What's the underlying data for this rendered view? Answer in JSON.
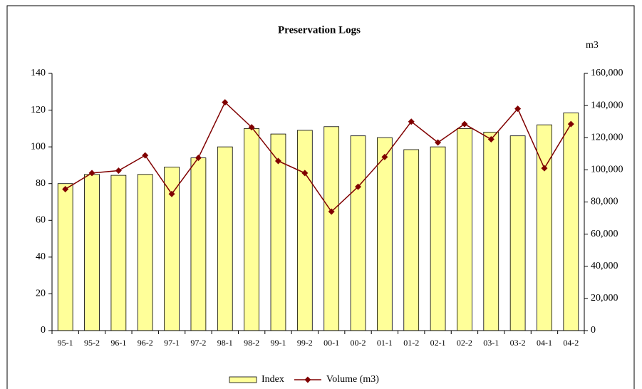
{
  "chart_data": {
    "type": "bar_line",
    "title": "Preservation Logs",
    "y2_unit": "m3",
    "categories": [
      "95-1",
      "95-2",
      "96-1",
      "96-2",
      "97-1",
      "97-2",
      "98-1",
      "98-2",
      "99-1",
      "99-2",
      "00-1",
      "00-2",
      "01-1",
      "01-2",
      "02-1",
      "02-2",
      "03-1",
      "03-2",
      "04-1",
      "04-2"
    ],
    "series": [
      {
        "name": "Index",
        "type": "bar",
        "color": "#ffff99",
        "axis": "y",
        "values": [
          80,
          85,
          84.5,
          85,
          89,
          94,
          100,
          110,
          107,
          109,
          111,
          106,
          105,
          98.5,
          100,
          110,
          108,
          106,
          112,
          118.5
        ]
      },
      {
        "name": "Volume (m3)",
        "type": "line",
        "color": "#800000",
        "axis": "y2",
        "values": [
          88000,
          98000,
          99500,
          109000,
          85000,
          107500,
          142000,
          126500,
          105500,
          98000,
          74000,
          89500,
          108000,
          130000,
          117000,
          128500,
          119000,
          138000,
          101000,
          128500
        ]
      }
    ],
    "ylim": [
      0,
      140
    ],
    "yticks": [
      0,
      20,
      40,
      60,
      80,
      100,
      120,
      140
    ],
    "y2lim": [
      0,
      160000
    ],
    "y2ticks": [
      0,
      {
        "value": 20000,
        "label": "20,000"
      },
      {
        "value": 40000,
        "label": "40,000"
      },
      {
        "value": 60000,
        "label": "60,000"
      },
      {
        "value": 80000,
        "label": "80,000"
      },
      {
        "value": 100000,
        "label": "100,000"
      },
      {
        "value": 120000,
        "label": "120,000"
      },
      {
        "value": 140000,
        "label": "140,000"
      },
      {
        "value": 160000,
        "label": "160,000"
      }
    ],
    "grid": false,
    "legend": "bottom"
  }
}
